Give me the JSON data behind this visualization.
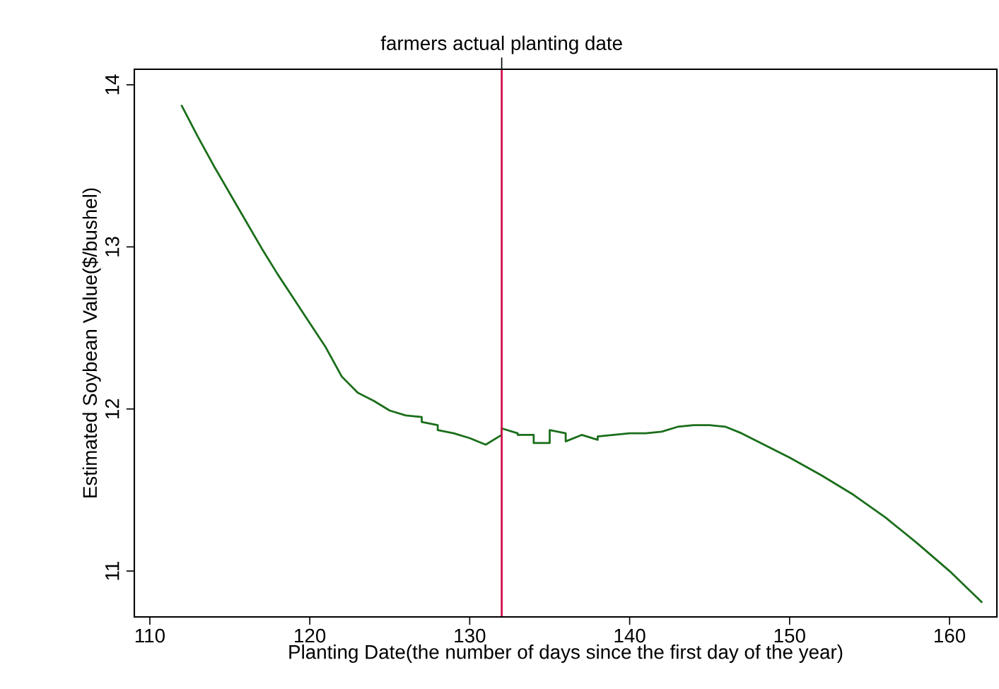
{
  "chart_data": {
    "type": "line",
    "xlabel": "Planting Date(the number of days since the first day of the year)",
    "ylabel": "Estimated Soybean Value($/bushel)",
    "xlim": [
      109.03,
      162.96
    ],
    "ylim": [
      10.717,
      14.096
    ],
    "xticks": [
      110,
      120,
      130,
      140,
      150,
      160
    ],
    "yticks": [
      11,
      12,
      13,
      14
    ],
    "grid": false,
    "legend": false,
    "marker": "none",
    "line_style": "solid",
    "ref_lines": [
      {
        "axis": "x",
        "value": 132,
        "label": "farmers actual planting date",
        "color": "#d0104c"
      }
    ],
    "series": [
      {
        "color": "#1a6e1a",
        "x": [
          112,
          113,
          114,
          115,
          116,
          117,
          118,
          119,
          120,
          121,
          122,
          123,
          124,
          125,
          126,
          127,
          127,
          128,
          128,
          129,
          130,
          131,
          132,
          132,
          133,
          133,
          134,
          134,
          135,
          135,
          136,
          136,
          137,
          138,
          138,
          139,
          140,
          141,
          142,
          143,
          144,
          145,
          146,
          147,
          150,
          152,
          154,
          156,
          158,
          160,
          162
        ],
        "values": [
          13.87,
          13.68,
          13.5,
          13.33,
          13.16,
          12.99,
          12.83,
          12.68,
          12.53,
          12.38,
          12.2,
          12.1,
          12.05,
          11.99,
          11.96,
          11.95,
          11.92,
          11.9,
          11.87,
          11.85,
          11.82,
          11.78,
          11.84,
          11.88,
          11.85,
          11.84,
          11.84,
          11.79,
          11.79,
          11.87,
          11.85,
          11.8,
          11.84,
          11.81,
          11.83,
          11.84,
          11.85,
          11.85,
          11.86,
          11.89,
          11.9,
          11.9,
          11.89,
          11.85,
          11.7,
          11.59,
          11.47,
          11.33,
          11.17,
          11.0,
          10.81
        ]
      }
    ]
  }
}
